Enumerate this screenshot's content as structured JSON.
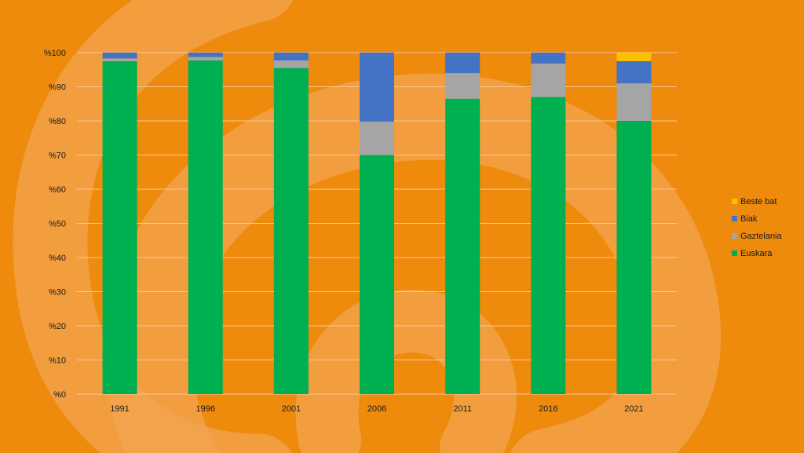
{
  "colors": {
    "background": "#ee8a0c",
    "swirl": "#f3a450",
    "gridline": "#f8c79a",
    "axis": "#f8c79a"
  },
  "chart_data": {
    "type": "bar",
    "stacked": true,
    "categories": [
      "1991",
      "1996",
      "2001",
      "2006",
      "2011",
      "2016",
      "2021"
    ],
    "series": [
      {
        "name": "Euskara",
        "color": "#00b050",
        "values": [
          97.5,
          97.7,
          95.5,
          70.0,
          86.5,
          87.0,
          80.0
        ]
      },
      {
        "name": "Gaztelania",
        "color": "#a5a5a5",
        "values": [
          0.8,
          1.0,
          2.2,
          9.8,
          7.5,
          9.8,
          11.0
        ]
      },
      {
        "name": "Biak",
        "color": "#4472c4",
        "values": [
          1.7,
          1.3,
          2.3,
          20.2,
          6.0,
          3.2,
          6.5
        ]
      },
      {
        "name": "Beste bat",
        "color": "#ffc000",
        "values": [
          0,
          0,
          0,
          0,
          0,
          0,
          2.5
        ]
      }
    ],
    "y_ticks": [
      0,
      10,
      20,
      30,
      40,
      50,
      60,
      70,
      80,
      90,
      100
    ],
    "y_tick_labels": [
      "%0",
      "%10",
      "%20",
      "%30",
      "%40",
      "%50",
      "%60",
      "%70",
      "%80",
      "%90",
      "%100"
    ],
    "ylim": [
      0,
      100
    ],
    "grid": true,
    "legend_position": "right",
    "legend_order": [
      "Beste bat",
      "Biak",
      "Gaztelania",
      "Euskara"
    ],
    "title": "",
    "xlabel": "",
    "ylabel": ""
  }
}
